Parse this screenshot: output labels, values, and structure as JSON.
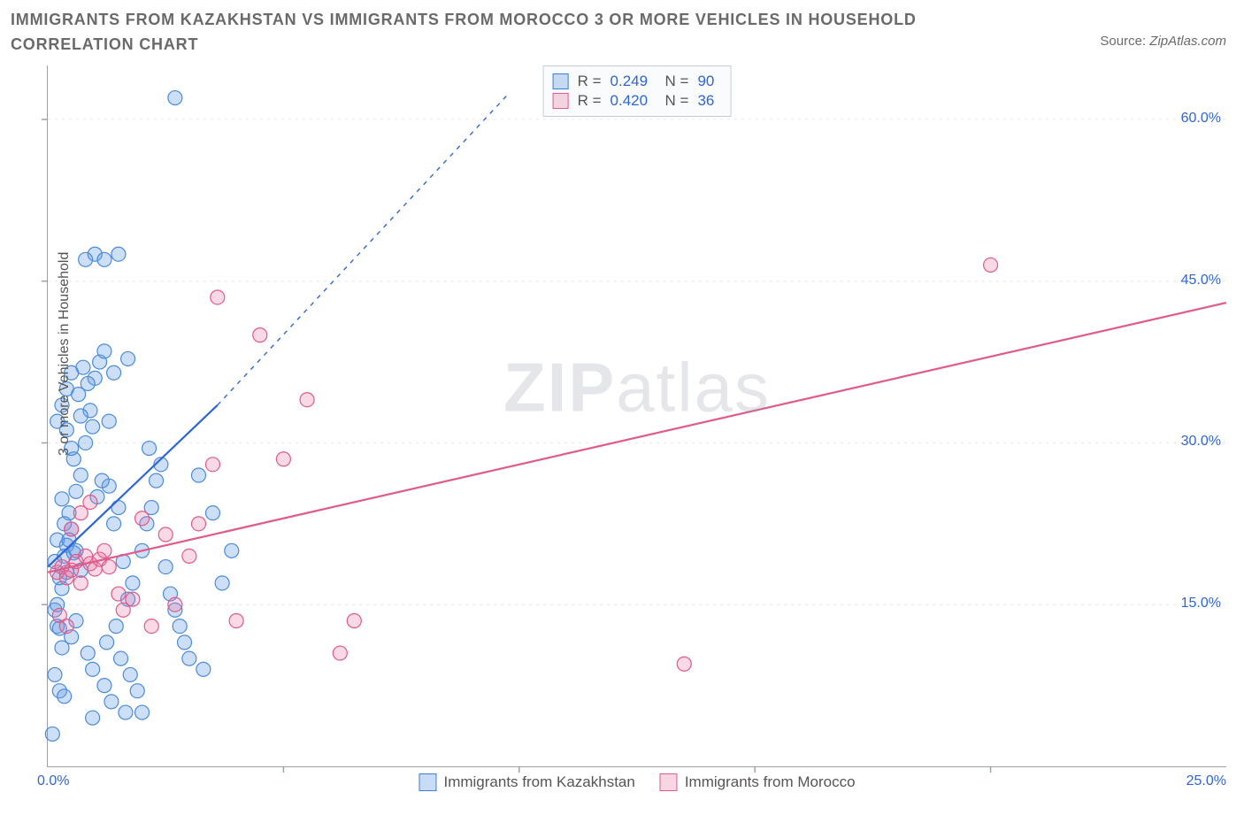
{
  "title": "IMMIGRANTS FROM KAZAKHSTAN VS IMMIGRANTS FROM MOROCCO 3 OR MORE VEHICLES IN HOUSEHOLD CORRELATION CHART",
  "source_prefix": "Source: ",
  "source": "ZipAtlas.com",
  "watermark_bold": "ZIP",
  "watermark_rest": "atlas",
  "chart": {
    "type": "scatter",
    "ylabel": "3 or more Vehicles in Household",
    "xlim": [
      0,
      25
    ],
    "ylim": [
      0,
      65
    ],
    "x_tick_left": "0.0%",
    "x_tick_right": "25.0%",
    "x_minor_ticks": [
      5,
      10,
      15,
      20
    ],
    "y_ticks": [
      {
        "v": 15,
        "label": "15.0%"
      },
      {
        "v": 30,
        "label": "30.0%"
      },
      {
        "v": 45,
        "label": "45.0%"
      },
      {
        "v": 60,
        "label": "60.0%"
      }
    ],
    "grid_color": "#e3e6ea",
    "grid_dash": "3,5",
    "axis_color": "#9aa1aa",
    "tick_label_color": "#2f66d3",
    "background_color": "#ffffff",
    "marker_radius": 8,
    "marker_stroke_width": 1.2,
    "series": [
      {
        "name": "Immigrants from Kazakhstan",
        "fill": "rgba(99,156,227,0.32)",
        "stroke": "#4a8bdc",
        "R": "0.249",
        "N": "90",
        "trend": {
          "x1": 0.0,
          "y1": 18.5,
          "x2": 3.6,
          "y2": 33.5,
          "dash_x2": 9.8,
          "dash_y2": 62.5,
          "color": "#2f66d3",
          "width": 2.2
        },
        "points": [
          [
            0.1,
            3.0
          ],
          [
            0.2,
            13.0
          ],
          [
            0.15,
            14.5
          ],
          [
            0.3,
            11.0
          ],
          [
            0.25,
            12.8
          ],
          [
            0.4,
            18.0
          ],
          [
            0.35,
            19.5
          ],
          [
            0.2,
            21.0
          ],
          [
            0.5,
            22.0
          ],
          [
            0.45,
            23.5
          ],
          [
            0.3,
            24.8
          ],
          [
            0.6,
            25.5
          ],
          [
            0.7,
            27.0
          ],
          [
            0.55,
            28.5
          ],
          [
            0.8,
            30.0
          ],
          [
            0.4,
            31.2
          ],
          [
            0.9,
            33.0
          ],
          [
            0.65,
            34.5
          ],
          [
            1.0,
            36.0
          ],
          [
            1.1,
            37.5
          ],
          [
            0.75,
            37.0
          ],
          [
            1.2,
            38.5
          ],
          [
            0.85,
            35.5
          ],
          [
            0.5,
            29.5
          ],
          [
            0.95,
            31.5
          ],
          [
            1.3,
            26.0
          ],
          [
            1.5,
            24.0
          ],
          [
            1.4,
            22.5
          ],
          [
            1.6,
            19.0
          ],
          [
            1.8,
            17.0
          ],
          [
            1.7,
            15.5
          ],
          [
            1.45,
            13.0
          ],
          [
            1.25,
            11.5
          ],
          [
            1.55,
            10.0
          ],
          [
            1.75,
            8.5
          ],
          [
            1.9,
            7.0
          ],
          [
            1.35,
            6.0
          ],
          [
            0.95,
            4.5
          ],
          [
            1.65,
            5.0
          ],
          [
            2.0,
            20.0
          ],
          [
            2.1,
            22.5
          ],
          [
            2.2,
            24.0
          ],
          [
            2.3,
            26.5
          ],
          [
            2.4,
            28.0
          ],
          [
            2.15,
            29.5
          ],
          [
            2.5,
            18.5
          ],
          [
            2.6,
            16.0
          ],
          [
            2.7,
            14.5
          ],
          [
            2.8,
            13.0
          ],
          [
            2.9,
            11.5
          ],
          [
            3.0,
            10.0
          ],
          [
            3.2,
            27.0
          ],
          [
            3.3,
            9.0
          ],
          [
            3.5,
            23.5
          ],
          [
            3.7,
            17.0
          ],
          [
            3.9,
            20.0
          ],
          [
            1.0,
            47.5
          ],
          [
            1.2,
            47.0
          ],
          [
            0.8,
            47.0
          ],
          [
            2.7,
            62.0
          ],
          [
            0.4,
            20.5
          ],
          [
            0.55,
            19.8
          ],
          [
            0.7,
            18.2
          ],
          [
            0.3,
            16.5
          ],
          [
            0.2,
            15.0
          ],
          [
            0.6,
            13.5
          ],
          [
            0.5,
            12.0
          ],
          [
            0.85,
            10.5
          ],
          [
            0.95,
            9.0
          ],
          [
            0.15,
            8.5
          ],
          [
            0.25,
            7.0
          ],
          [
            0.35,
            6.5
          ],
          [
            1.05,
            25.0
          ],
          [
            1.15,
            26.5
          ],
          [
            0.15,
            19.0
          ],
          [
            0.25,
            17.5
          ],
          [
            0.35,
            22.5
          ],
          [
            0.45,
            21.0
          ],
          [
            0.6,
            20.0
          ],
          [
            1.4,
            36.5
          ],
          [
            1.7,
            37.8
          ],
          [
            1.5,
            47.5
          ],
          [
            1.3,
            32.0
          ],
          [
            0.2,
            32.0
          ],
          [
            0.3,
            33.5
          ],
          [
            0.4,
            35.0
          ],
          [
            0.5,
            36.5
          ],
          [
            0.7,
            32.5
          ],
          [
            2.0,
            5.0
          ],
          [
            1.2,
            7.5
          ]
        ]
      },
      {
        "name": "Immigrants from Morocco",
        "fill": "rgba(232,120,161,0.28)",
        "stroke": "#e05a8a",
        "R": "0.420",
        "N": "36",
        "trend": {
          "x1": 0.0,
          "y1": 18.0,
          "x2": 25.0,
          "y2": 43.0,
          "color": "#e05a8a",
          "width": 2.2
        },
        "points": [
          [
            0.2,
            18.0
          ],
          [
            0.3,
            18.5
          ],
          [
            0.4,
            17.5
          ],
          [
            0.5,
            18.2
          ],
          [
            0.6,
            19.0
          ],
          [
            0.7,
            17.0
          ],
          [
            0.8,
            19.5
          ],
          [
            0.9,
            18.8
          ],
          [
            1.0,
            18.3
          ],
          [
            1.1,
            19.2
          ],
          [
            1.2,
            20.0
          ],
          [
            1.3,
            18.5
          ],
          [
            1.5,
            16.0
          ],
          [
            1.6,
            14.5
          ],
          [
            1.8,
            15.5
          ],
          [
            2.0,
            23.0
          ],
          [
            2.2,
            13.0
          ],
          [
            2.5,
            21.5
          ],
          [
            2.7,
            15.0
          ],
          [
            3.0,
            19.5
          ],
          [
            3.2,
            22.5
          ],
          [
            3.5,
            28.0
          ],
          [
            3.6,
            43.5
          ],
          [
            4.0,
            13.5
          ],
          [
            4.5,
            40.0
          ],
          [
            5.0,
            28.5
          ],
          [
            5.5,
            34.0
          ],
          [
            6.2,
            10.5
          ],
          [
            6.5,
            13.5
          ],
          [
            13.5,
            9.5
          ],
          [
            20.0,
            46.5
          ],
          [
            0.5,
            22.0
          ],
          [
            0.7,
            23.5
          ],
          [
            0.4,
            13.0
          ],
          [
            0.25,
            14.0
          ],
          [
            0.9,
            24.5
          ]
        ]
      }
    ],
    "legend": [
      {
        "swatch": "b",
        "label": "Immigrants from Kazakhstan"
      },
      {
        "swatch": "p",
        "label": "Immigrants from Morocco"
      }
    ],
    "statbox": [
      {
        "swatch": "b",
        "R": "0.249",
        "N": "90"
      },
      {
        "swatch": "p",
        "R": "0.420",
        "N": "36"
      }
    ]
  }
}
